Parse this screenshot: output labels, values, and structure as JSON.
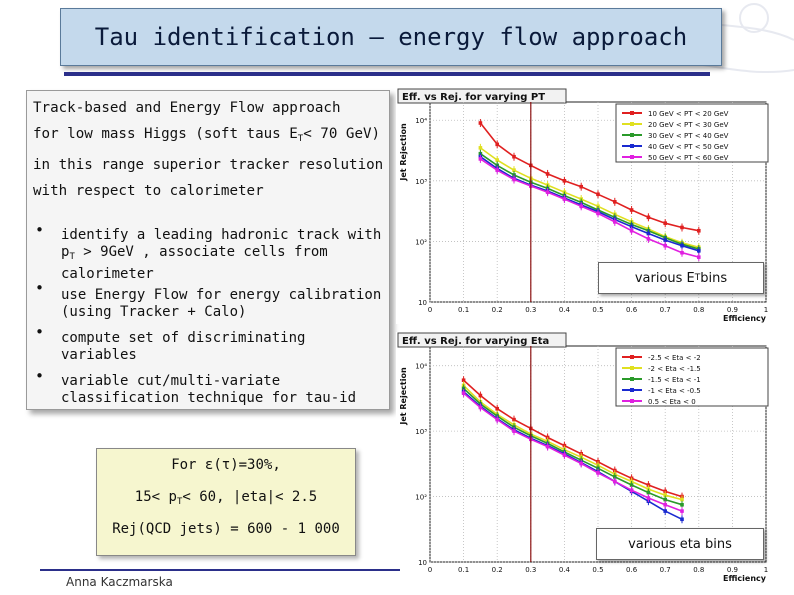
{
  "header": {
    "title": "Tau identification – energy flow approach"
  },
  "intro": {
    "line1": "Track-based and Energy Flow approach",
    "line2_pre": "for low mass Higgs (soft taus E",
    "line2_sub": "T",
    "line2_post": "< 70 GeV)",
    "line3": "in this range superior tracker resolution",
    "line4": "with respect to calorimeter"
  },
  "bullets": {
    "b1_l1": "identify a leading hadronic track with",
    "b1_l2_pre": "p",
    "b1_l2_sub": "T",
    "b1_l2_post": " > 9GeV , associate cells from",
    "b1_l3": "calorimeter",
    "b2_l1": "use Energy Flow for energy calibration",
    "b2_l2": "(using Tracker + Calo)",
    "b3_l1": "compute set of discriminating",
    "b3_l2": "variables",
    "b4_l1": "variable cut/multi-variate",
    "b4_l2": "classification technique for tau-id",
    "marker": "•"
  },
  "summary": {
    "line1": "For ε(τ)=30%,",
    "line2_pre": "15< p",
    "line2_sub": "T",
    "line2_post": "< 60, |eta|< 2.5",
    "line3": "Rej(QCD jets) = 600 - 1 000"
  },
  "footer": {
    "author": "Anna Kaczmarska"
  },
  "captions": {
    "pt_pre": "various E",
    "pt_sub": "T",
    "pt_post": " bins",
    "eta": "various eta bins"
  },
  "chart_data": [
    {
      "type": "line",
      "title": "Eff. vs Rej. for varying PT",
      "xlabel": "Efficiency",
      "ylabel": "Jet Rejection",
      "xlim": [
        0,
        1
      ],
      "ylim": [
        10,
        20000
      ],
      "log_y": true,
      "grid": true,
      "legend_position": "top-right",
      "x_ticks": [
        "0",
        "0.1",
        "0.2",
        "0.3",
        "0.4",
        "0.5",
        "0.6",
        "0.7",
        "0.8",
        "0.9",
        "1"
      ],
      "y_ticks": [
        "10",
        "10²",
        "10³",
        "10⁴"
      ],
      "marker_line_x": 0.3,
      "series": [
        {
          "name": "10 GeV < PT < 20 GeV",
          "color": "#e02020",
          "x": [
            0.15,
            0.2,
            0.25,
            0.3,
            0.35,
            0.4,
            0.45,
            0.5,
            0.55,
            0.6,
            0.65,
            0.7,
            0.75,
            0.8
          ],
          "y": [
            9000,
            4000,
            2500,
            1800,
            1300,
            1000,
            800,
            600,
            450,
            330,
            250,
            200,
            170,
            150
          ]
        },
        {
          "name": "20 GeV < PT < 30 GeV",
          "color": "#e0e020",
          "x": [
            0.15,
            0.2,
            0.25,
            0.3,
            0.35,
            0.4,
            0.45,
            0.5,
            0.55,
            0.6,
            0.65,
            0.7,
            0.75,
            0.8
          ],
          "y": [
            3500,
            2200,
            1500,
            1100,
            850,
            650,
            500,
            380,
            280,
            210,
            160,
            120,
            95,
            80
          ]
        },
        {
          "name": "30 GeV < PT < 40 GeV",
          "color": "#2a9a2a",
          "x": [
            0.15,
            0.2,
            0.25,
            0.3,
            0.35,
            0.4,
            0.45,
            0.5,
            0.55,
            0.6,
            0.65,
            0.7,
            0.75,
            0.8
          ],
          "y": [
            2800,
            1800,
            1250,
            950,
            750,
            570,
            440,
            330,
            250,
            190,
            150,
            115,
            90,
            75
          ]
        },
        {
          "name": "40 GeV < PT < 50 GeV",
          "color": "#1a2ad0",
          "x": [
            0.15,
            0.2,
            0.25,
            0.3,
            0.35,
            0.4,
            0.45,
            0.5,
            0.55,
            0.6,
            0.65,
            0.7,
            0.75,
            0.8
          ],
          "y": [
            2500,
            1600,
            1100,
            850,
            680,
            520,
            400,
            310,
            230,
            175,
            135,
            105,
            85,
            70
          ]
        },
        {
          "name": "50 GeV < PT < 60 GeV",
          "color": "#e020e0",
          "x": [
            0.15,
            0.2,
            0.25,
            0.3,
            0.35,
            0.4,
            0.45,
            0.5,
            0.55,
            0.6,
            0.65,
            0.7,
            0.75,
            0.8
          ],
          "y": [
            2300,
            1500,
            1050,
            820,
            650,
            500,
            380,
            290,
            210,
            150,
            110,
            85,
            65,
            55
          ]
        }
      ]
    },
    {
      "type": "line",
      "title": "Eff. vs Rej. for varying Eta",
      "xlabel": "Efficiency",
      "ylabel": "Jet Rejection",
      "xlim": [
        0,
        1
      ],
      "ylim": [
        10,
        20000
      ],
      "log_y": true,
      "grid": true,
      "legend_position": "top-right",
      "x_ticks": [
        "0",
        "0.1",
        "0.2",
        "0.3",
        "0.4",
        "0.5",
        "0.6",
        "0.7",
        "0.8",
        "0.9",
        "1"
      ],
      "y_ticks": [
        "10",
        "10²",
        "10³",
        "10⁴"
      ],
      "marker_line_x": 0.3,
      "series": [
        {
          "name": "-2.5 < Eta < -2",
          "color": "#e02020",
          "x": [
            0.1,
            0.15,
            0.2,
            0.25,
            0.3,
            0.35,
            0.4,
            0.45,
            0.5,
            0.55,
            0.6,
            0.65,
            0.7,
            0.75
          ],
          "y": [
            6000,
            3500,
            2200,
            1500,
            1100,
            800,
            600,
            450,
            340,
            250,
            190,
            150,
            120,
            100
          ]
        },
        {
          "name": "-2 < Eta < -1.5",
          "color": "#e0e020",
          "x": [
            0.1,
            0.15,
            0.2,
            0.25,
            0.3,
            0.35,
            0.4,
            0.45,
            0.5,
            0.55,
            0.6,
            0.65,
            0.7,
            0.75
          ],
          "y": [
            5000,
            2800,
            1800,
            1250,
            900,
            700,
            520,
            400,
            300,
            220,
            170,
            130,
            105,
            90
          ]
        },
        {
          "name": "-1.5 < Eta < -1",
          "color": "#2a9a2a",
          "x": [
            0.1,
            0.15,
            0.2,
            0.25,
            0.3,
            0.35,
            0.4,
            0.45,
            0.5,
            0.55,
            0.6,
            0.65,
            0.7,
            0.75
          ],
          "y": [
            4500,
            2600,
            1700,
            1150,
            850,
            650,
            480,
            360,
            270,
            200,
            150,
            115,
            90,
            75
          ]
        },
        {
          "name": "-1 < Eta < -0.5",
          "color": "#1a2ad0",
          "x": [
            0.1,
            0.15,
            0.2,
            0.25,
            0.3,
            0.35,
            0.4,
            0.45,
            0.5,
            0.55,
            0.6,
            0.65,
            0.7,
            0.75
          ],
          "y": [
            4000,
            2400,
            1550,
            1050,
            780,
            600,
            450,
            330,
            240,
            170,
            120,
            85,
            60,
            45
          ]
        },
        {
          "name": "0.5 < Eta < 0",
          "color": "#e020e0",
          "x": [
            0.1,
            0.15,
            0.2,
            0.25,
            0.3,
            0.35,
            0.4,
            0.45,
            0.5,
            0.55,
            0.6,
            0.65,
            0.7,
            0.75
          ],
          "y": [
            3800,
            2300,
            1500,
            1000,
            750,
            580,
            430,
            320,
            230,
            170,
            125,
            95,
            75,
            60
          ]
        }
      ]
    }
  ]
}
